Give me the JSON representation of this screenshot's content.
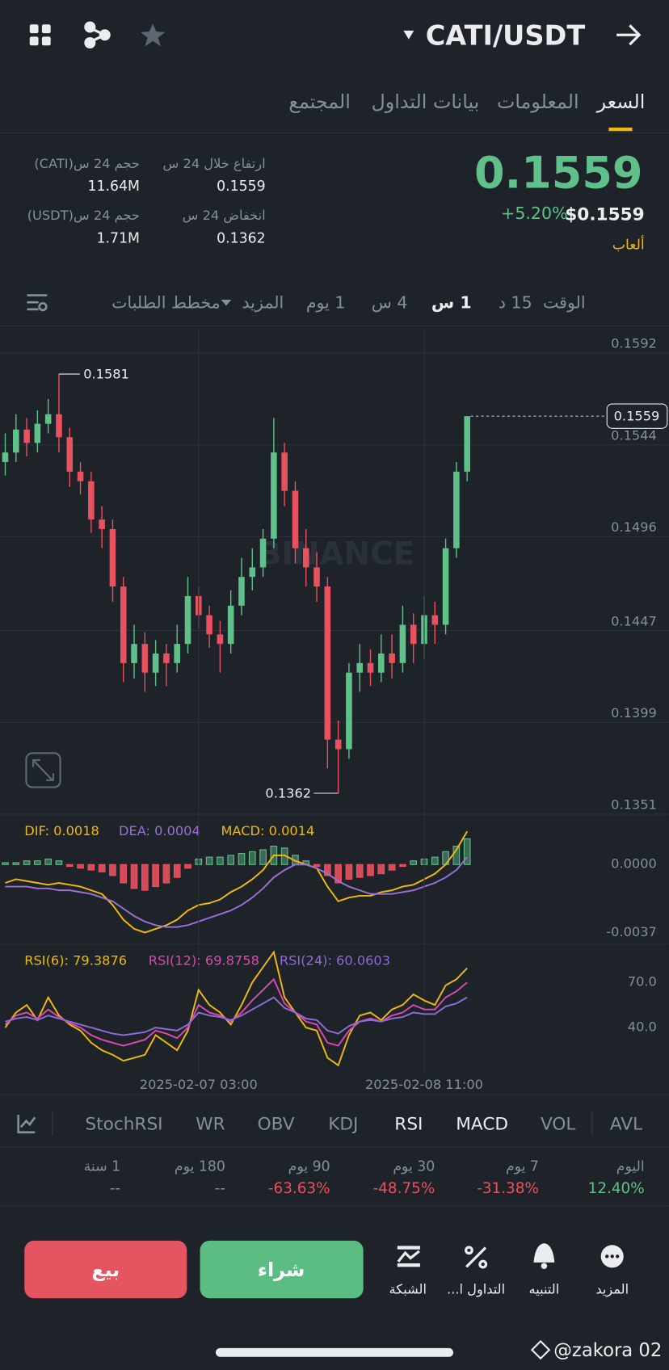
{
  "header": {
    "pair": "CATI/USDT"
  },
  "tabs": [
    "السعر",
    "المعلومات",
    "بيانات التداول",
    "المجتمع"
  ],
  "price": {
    "last": "0.1559",
    "change": "+5.20%",
    "usd": "$0.1559",
    "tag": "ألعاب"
  },
  "stats": [
    {
      "label": "ارتفاع خلال 24 س",
      "value": "0.1559"
    },
    {
      "label": "حجم 24 س(CATI)",
      "value": "11.64M"
    },
    {
      "label": "انخفاض 24 س",
      "value": "0.1362"
    },
    {
      "label": "حجم 24 س(USDT)",
      "value": "1.71M"
    }
  ],
  "intervals": [
    "الوقت",
    "15 د",
    "1 س",
    "4 س",
    "1 يوم",
    "المزيد",
    "مخطط الطلبات"
  ],
  "watermark": "BINANCE",
  "chart_data": [
    {
      "type": "candlestick",
      "up_color": "#5fc08a",
      "down_color": "#e8515f",
      "grid": true,
      "ylim": [
        0.1351,
        0.1592
      ],
      "yticks": [
        0.1592,
        0.1544,
        0.1496,
        0.1447,
        0.1399,
        0.1351
      ],
      "open": [
        0.1535,
        0.154,
        0.1552,
        0.1545,
        0.1555,
        0.156,
        0.1548,
        0.153,
        0.1525,
        0.1505,
        0.15,
        0.147,
        0.143,
        0.144,
        0.1425,
        0.1435,
        0.143,
        0.144,
        0.1465,
        0.1455,
        0.1445,
        0.144,
        0.146,
        0.1475,
        0.148,
        0.1495,
        0.154,
        0.152,
        0.149,
        0.148,
        0.147,
        0.139,
        0.1385,
        0.1425,
        0.143,
        0.1425,
        0.1435,
        0.143,
        0.145,
        0.144,
        0.1455,
        0.145,
        0.149,
        0.153
      ],
      "high": [
        0.155,
        0.156,
        0.1558,
        0.1562,
        0.1568,
        0.1581,
        0.1553,
        0.1535,
        0.153,
        0.1512,
        0.1505,
        0.1475,
        0.145,
        0.1446,
        0.1442,
        0.144,
        0.145,
        0.1475,
        0.147,
        0.146,
        0.1452,
        0.1468,
        0.1485,
        0.149,
        0.15,
        0.1558,
        0.1545,
        0.1525,
        0.15,
        0.1488,
        0.1475,
        0.14,
        0.143,
        0.144,
        0.1437,
        0.1445,
        0.1445,
        0.146,
        0.1456,
        0.1465,
        0.1462,
        0.1495,
        0.1535,
        0.1559
      ],
      "low": [
        0.1528,
        0.1535,
        0.1538,
        0.154,
        0.155,
        0.154,
        0.1522,
        0.1518,
        0.1498,
        0.149,
        0.1462,
        0.142,
        0.1422,
        0.1415,
        0.1418,
        0.1418,
        0.1425,
        0.1435,
        0.1448,
        0.1438,
        0.1425,
        0.1435,
        0.1455,
        0.1468,
        0.1475,
        0.149,
        0.1512,
        0.1482,
        0.147,
        0.1462,
        0.1375,
        0.1362,
        0.138,
        0.1415,
        0.1418,
        0.142,
        0.1422,
        0.1425,
        0.143,
        0.1432,
        0.144,
        0.1445,
        0.1485,
        0.1525
      ],
      "close": [
        0.154,
        0.1552,
        0.1545,
        0.1555,
        0.156,
        0.1548,
        0.153,
        0.1525,
        0.1505,
        0.15,
        0.147,
        0.143,
        0.144,
        0.1425,
        0.1435,
        0.143,
        0.144,
        0.1465,
        0.1455,
        0.1445,
        0.144,
        0.146,
        0.1475,
        0.148,
        0.1495,
        0.154,
        0.152,
        0.149,
        0.148,
        0.147,
        0.139,
        0.1385,
        0.1425,
        0.143,
        0.1425,
        0.1435,
        0.143,
        0.145,
        0.144,
        0.1455,
        0.145,
        0.149,
        0.153,
        0.1559
      ]
    },
    {
      "type": "macd",
      "ylim": [
        -0.0043,
        0.0024
      ],
      "yticks": [
        {
          "value": 0,
          "label": "0.0000"
        },
        -0.0037
      ],
      "series": [
        {
          "name": "DIF: 0.0018",
          "color": "#f0b90b",
          "kind": "line",
          "values": [
            -0.001,
            -0.0008,
            -0.0009,
            -0.001,
            -0.0011,
            -0.001,
            -0.0011,
            -0.0012,
            -0.0014,
            -0.0016,
            -0.0022,
            -0.003,
            -0.0035,
            -0.0037,
            -0.0035,
            -0.0033,
            -0.003,
            -0.0025,
            -0.0022,
            -0.0021,
            -0.0019,
            -0.0015,
            -0.0012,
            -0.0008,
            -0.0003,
            0.0005,
            0.0005,
            0.0002,
            0.0,
            -0.0002,
            -0.0012,
            -0.002,
            -0.0018,
            -0.0017,
            -0.0017,
            -0.0015,
            -0.0014,
            -0.0012,
            -0.0011,
            -0.0008,
            -0.0005,
            0.0,
            0.0008,
            0.0018
          ]
        },
        {
          "name": "DEA: 0.0004",
          "color": "#9a6fd6",
          "kind": "line",
          "values": [
            -0.0012,
            -0.0012,
            -0.0012,
            -0.0013,
            -0.0013,
            -0.0014,
            -0.0014,
            -0.0015,
            -0.0016,
            -0.0018,
            -0.002,
            -0.0024,
            -0.0028,
            -0.0031,
            -0.0033,
            -0.0034,
            -0.0034,
            -0.0033,
            -0.0031,
            -0.0029,
            -0.0027,
            -0.0025,
            -0.0022,
            -0.0018,
            -0.0013,
            -0.0007,
            -0.0003,
            0.0,
            0.0,
            -0.0002,
            -0.0005,
            -0.0009,
            -0.0012,
            -0.0014,
            -0.0016,
            -0.0016,
            -0.0016,
            -0.0015,
            -0.0014,
            -0.0012,
            -0.001,
            -0.0007,
            -0.0003,
            0.0004
          ]
        },
        {
          "name": "MACD: 0.0014",
          "color": "#f0b90b",
          "kind": "histogram",
          "up_color": "#5fc08a",
          "down_color": "#e8515f",
          "values": [
            0.0001,
            0.0001,
            0.0002,
            0.0002,
            0.0003,
            0.0002,
            -0.0001,
            -0.0002,
            -0.0003,
            -0.0004,
            -0.0006,
            -0.001,
            -0.0013,
            -0.0014,
            -0.0012,
            -0.001,
            -0.0007,
            -0.0002,
            0.0003,
            0.0004,
            0.0004,
            0.0005,
            0.0006,
            0.0007,
            0.0008,
            0.001,
            0.0009,
            0.0005,
            0.0002,
            -0.0001,
            -0.0006,
            -0.001,
            -0.0008,
            -0.0007,
            -0.0006,
            -0.0005,
            -0.0003,
            -0.0001,
            0.0002,
            0.0003,
            0.0004,
            0.0007,
            0.001,
            0.0014
          ]
        }
      ]
    },
    {
      "type": "line",
      "ylim": [
        10,
        91
      ],
      "yticks": [
        {
          "value": 70,
          "label": "70.0"
        },
        {
          "value": 40,
          "label": "40.0"
        }
      ],
      "categories": [
        null,
        null,
        null,
        null,
        null,
        null,
        null,
        null,
        null,
        null,
        null,
        null,
        null,
        null,
        null,
        null,
        null,
        null,
        "2025-02-07 03:00",
        null,
        null,
        null,
        null,
        null,
        null,
        null,
        null,
        null,
        null,
        null,
        null,
        null,
        null,
        null,
        null,
        null,
        null,
        null,
        null,
        "2025-02-08 11:00",
        null,
        null,
        null,
        null
      ],
      "series": [
        {
          "name": "RSI(6): 79.3876",
          "color": "#f0b90b",
          "values": [
            40,
            50,
            55,
            45,
            60,
            48,
            42,
            38,
            30,
            25,
            22,
            18,
            20,
            22,
            35,
            30,
            25,
            38,
            65,
            55,
            50,
            42,
            55,
            70,
            80,
            90,
            60,
            50,
            40,
            38,
            20,
            15,
            35,
            48,
            50,
            45,
            52,
            55,
            62,
            58,
            55,
            68,
            72,
            79.3876
          ]
        },
        {
          "name": "RSI(12): 69.8758",
          "color": "#d84bad",
          "values": [
            42,
            48,
            50,
            46,
            52,
            47,
            43,
            40,
            35,
            32,
            30,
            28,
            30,
            32,
            38,
            36,
            33,
            40,
            55,
            50,
            48,
            44,
            50,
            58,
            65,
            72,
            56,
            50,
            44,
            42,
            30,
            28,
            38,
            44,
            46,
            44,
            48,
            50,
            55,
            52,
            52,
            60,
            64,
            69.8758
          ]
        },
        {
          "name": "RSI(24): 60.0603",
          "color": "#8e6bd8",
          "values": [
            44,
            46,
            47,
            45,
            48,
            46,
            44,
            42,
            40,
            38,
            36,
            35,
            36,
            37,
            40,
            39,
            38,
            42,
            50,
            48,
            47,
            45,
            48,
            52,
            56,
            60,
            53,
            50,
            46,
            45,
            38,
            36,
            41,
            44,
            45,
            44,
            46,
            47,
            50,
            49,
            49,
            54,
            56,
            60.0603
          ]
        }
      ]
    }
  ],
  "indicators": [
    "StochRSI",
    "WR",
    "OBV",
    "KDJ",
    "RSI",
    "MACD",
    "VOL",
    "AVL"
  ],
  "performance": [
    {
      "period": "اليوم",
      "change": "12.40%"
    },
    {
      "period": "7 يوم",
      "change": "-31.38%"
    },
    {
      "period": "30 يوم",
      "change": "-48.75%"
    },
    {
      "period": "90 يوم",
      "change": "-63.63%"
    },
    {
      "period": "180 يوم",
      "change": "--"
    },
    {
      "period": "1 سنة",
      "change": "--"
    }
  ],
  "actions": {
    "sell": "بيع",
    "buy": "شراء"
  },
  "nav": [
    "الشبكة",
    "التداول ا...",
    "التنبيه",
    "المزيد"
  ],
  "credit": "@zakora 02"
}
